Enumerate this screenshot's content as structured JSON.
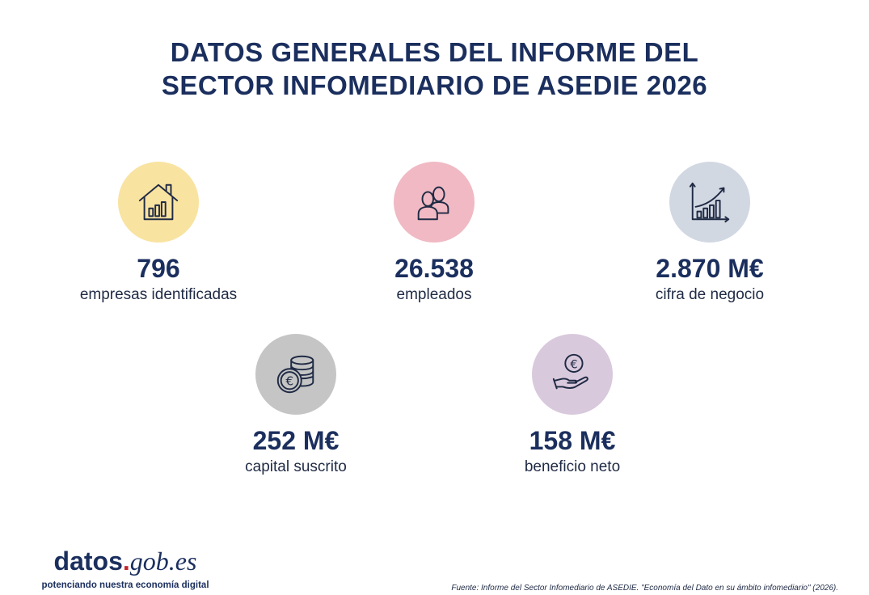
{
  "title": {
    "line1": "DATOS GENERALES DEL INFORME DEL",
    "line2": "SECTOR INFOMEDIARIO DE ASEDIE 2026"
  },
  "stats": [
    {
      "value": "796",
      "label": "empresas identificadas",
      "icon": "house-chart-icon",
      "color": "#f9e3a1"
    },
    {
      "value": "26.538",
      "label": "empleados",
      "icon": "people-icon",
      "color": "#f0b9c3"
    },
    {
      "value": "2.870 M€",
      "label": "cifra de negocio",
      "icon": "growth-chart-icon",
      "color": "#d2d8e2"
    },
    {
      "value": "252 M€",
      "label": "capital suscrito",
      "icon": "coins-icon",
      "color": "#c5c5c5"
    },
    {
      "value": "158 M€",
      "label": "beneficio neto",
      "icon": "hand-euro-icon",
      "color": "#d9c9dc"
    }
  ],
  "logo": {
    "part1": "datos",
    "dot": ".",
    "part2": "gob.es",
    "tagline": "potenciando nuestra economía digital"
  },
  "source": "Fuente: Informe del Sector Infomediario de ASEDIE. \"Economía del Dato en su ámbito infomediario\" (2026)."
}
